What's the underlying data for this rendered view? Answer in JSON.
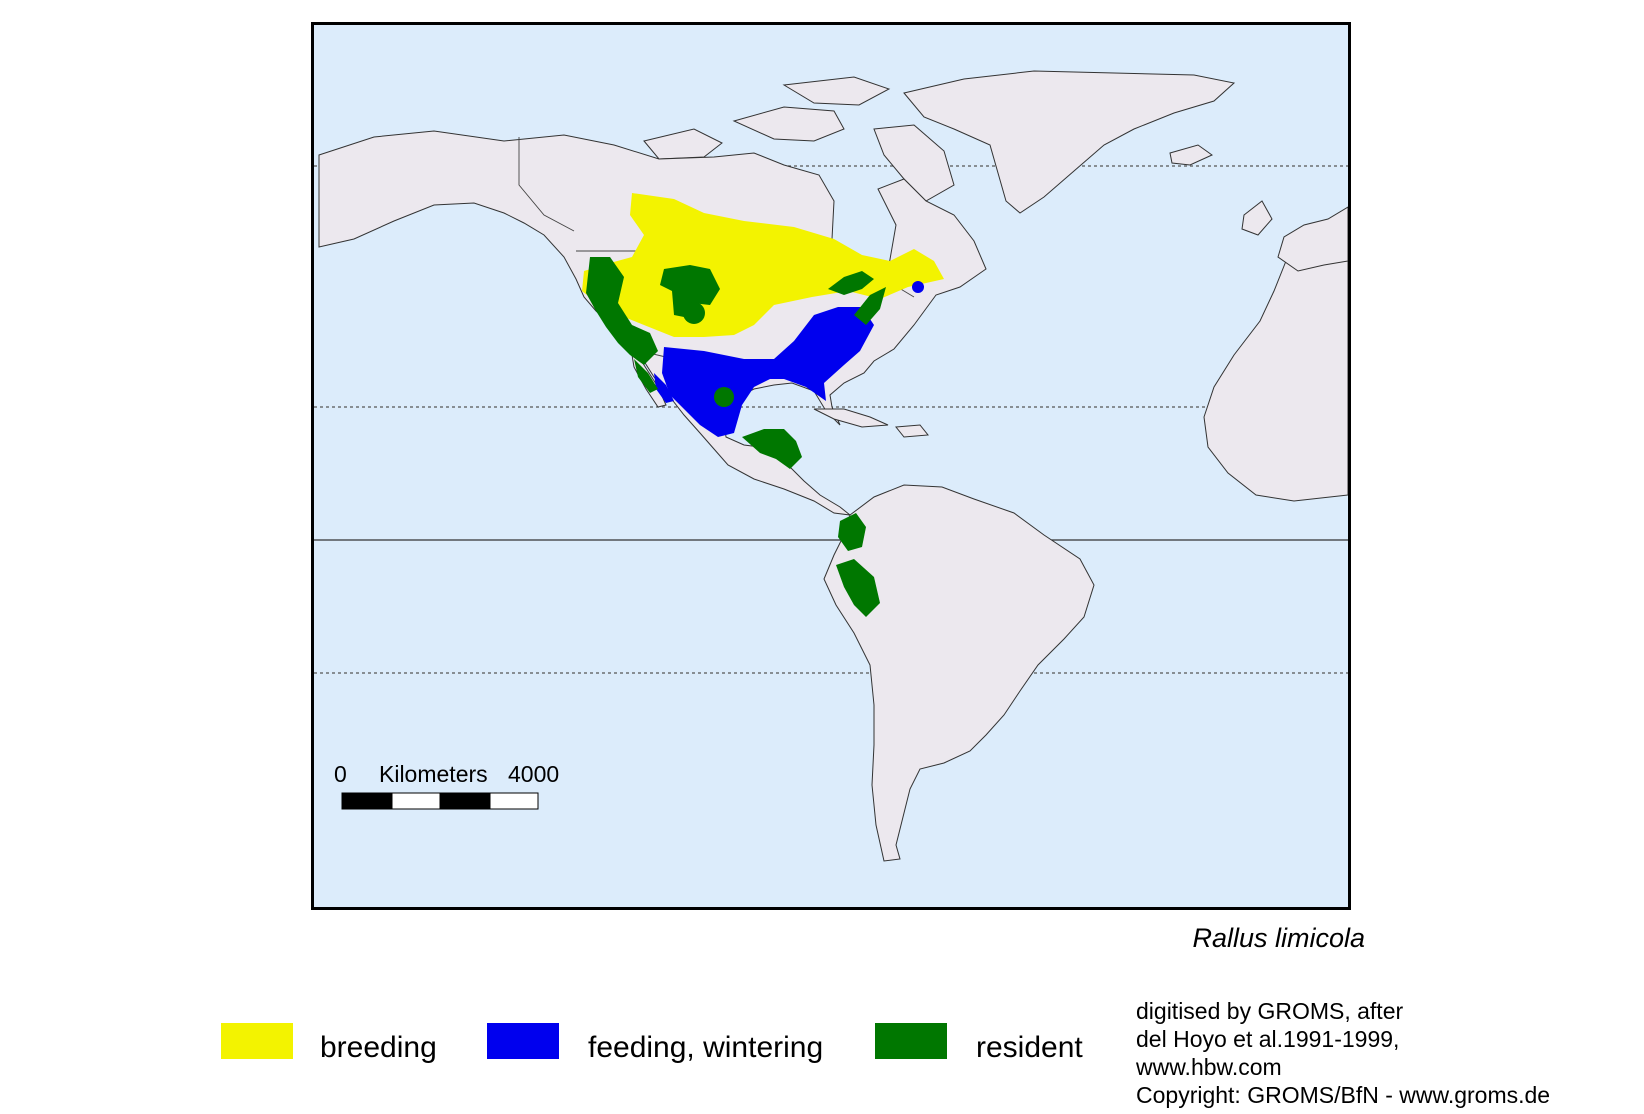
{
  "map": {
    "scale_bar": {
      "zero_label": "0",
      "unit_label": "Kilometers",
      "max_label": "4000"
    },
    "colors": {
      "ocean": "#dcecfb",
      "land": "#ece8ee",
      "breeding": "#f3f300",
      "feeding_wintering": "#0000ee",
      "resident": "#007700"
    }
  },
  "species_name": "Rallus limicola",
  "legend": [
    {
      "label": "breeding",
      "color": "#f3f300"
    },
    {
      "label": "feeding, wintering",
      "color": "#0000ee"
    },
    {
      "label": "resident",
      "color": "#007700"
    }
  ],
  "credits": [
    "digitised by GROMS, after",
    "del Hoyo et al.1991-1999,",
    "www.hbw.com",
    "Copyright: GROMS/BfN - www.groms.de"
  ]
}
